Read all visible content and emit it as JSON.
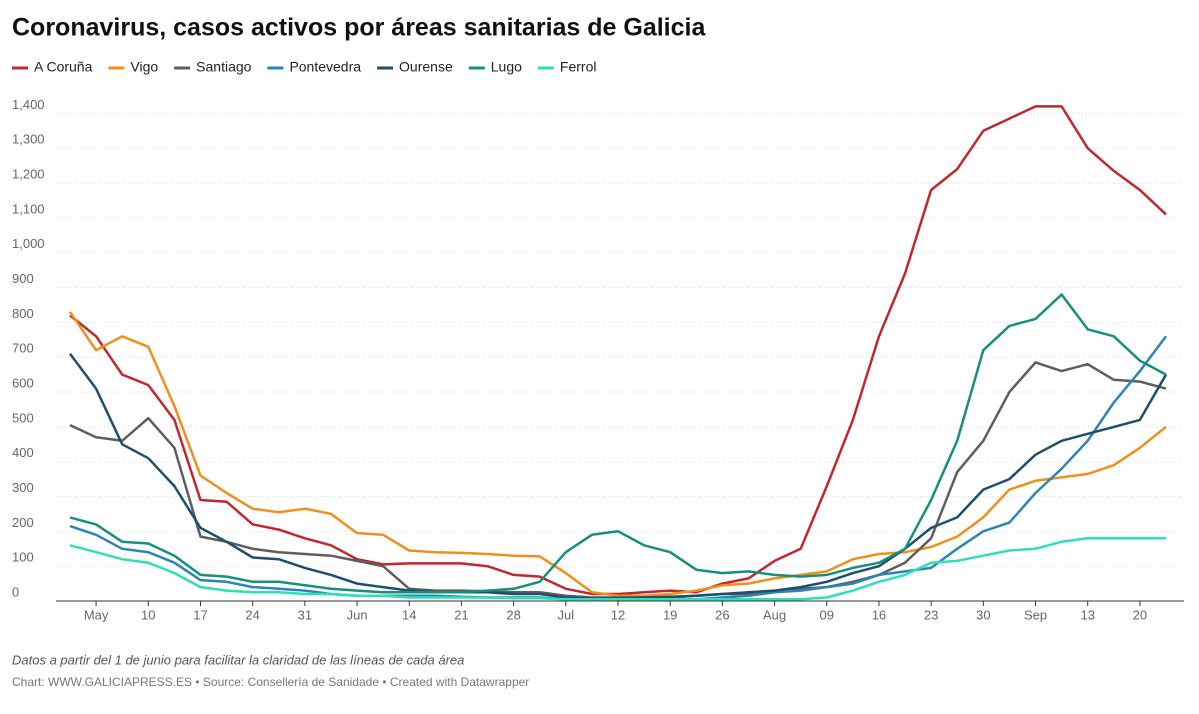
{
  "chart_data": {
    "type": "line",
    "title": "Coronavirus, casos activos por áreas sanitarias de Galicia",
    "note": "Datos a partir del 1 de junio para facilitar la claridad de las líneas de cada área",
    "source": "Chart: WWW.GALICIAPRESS.ES • Source: Consellería de Sanidade • Created with Datawrapper",
    "categories": [
      null,
      "May",
      null,
      "10",
      null,
      "17",
      null,
      "24",
      null,
      "31",
      null,
      "Jun",
      null,
      "14",
      null,
      "21",
      null,
      "28",
      null,
      "Jul",
      null,
      "12",
      null,
      "19",
      null,
      "26",
      null,
      "Aug",
      null,
      "09",
      null,
      "16",
      null,
      "23",
      null,
      "30",
      null,
      "Sep",
      null,
      "13",
      null,
      "20",
      null
    ],
    "ylim": [
      0,
      1450
    ],
    "yticks": [
      0,
      100,
      200,
      300,
      400,
      500,
      600,
      700,
      800,
      900,
      {
        "value": 1000,
        "label": "1,000"
      },
      {
        "value": 1100,
        "label": "1,100"
      },
      {
        "value": 1200,
        "label": "1,200"
      },
      {
        "value": 1300,
        "label": "1,300"
      },
      {
        "value": 1400,
        "label": "1,400"
      }
    ],
    "grid": true,
    "series": [
      {
        "name": "A Coruña",
        "color": "#c1272d",
        "values": [
          820,
          760,
          650,
          620,
          520,
          290,
          285,
          220,
          205,
          180,
          160,
          120,
          105,
          108,
          108,
          108,
          100,
          75,
          70,
          35,
          20,
          20,
          25,
          30,
          25,
          50,
          65,
          115,
          150,
          330,
          520,
          760,
          940,
          1180,
          1240,
          1350,
          1385,
          1420,
          1420,
          1300,
          1235,
          1180,
          1110
        ]
      },
      {
        "name": "Vigo",
        "color": "#f0901b",
        "values": [
          830,
          720,
          760,
          730,
          560,
          360,
          310,
          265,
          255,
          265,
          250,
          195,
          190,
          145,
          140,
          138,
          135,
          130,
          128,
          80,
          25,
          15,
          15,
          20,
          30,
          45,
          50,
          65,
          75,
          85,
          120,
          135,
          140,
          155,
          185,
          240,
          320,
          345,
          355,
          365,
          390,
          440,
          500
        ]
      },
      {
        "name": "Santiago",
        "color": "#5e5e5e",
        "values": [
          505,
          470,
          460,
          525,
          440,
          185,
          170,
          150,
          140,
          135,
          130,
          115,
          100,
          35,
          30,
          30,
          28,
          25,
          25,
          15,
          10,
          10,
          10,
          10,
          15,
          20,
          20,
          25,
          35,
          40,
          55,
          75,
          110,
          180,
          370,
          460,
          600,
          685,
          660,
          680,
          635,
          630,
          610
        ]
      },
      {
        "name": "Pontevedra",
        "color": "#2a86b8",
        "values": [
          215,
          190,
          150,
          140,
          110,
          60,
          55,
          40,
          35,
          30,
          20,
          15,
          15,
          15,
          15,
          12,
          10,
          10,
          10,
          5,
          5,
          5,
          5,
          5,
          5,
          10,
          15,
          25,
          30,
          40,
          50,
          75,
          85,
          95,
          150,
          200,
          225,
          310,
          380,
          460,
          570,
          660,
          760
        ]
      },
      {
        "name": "Ourense",
        "color": "#1f4e6e",
        "values": [
          710,
          610,
          450,
          410,
          330,
          210,
          170,
          125,
          120,
          95,
          75,
          50,
          40,
          30,
          25,
          25,
          25,
          20,
          20,
          10,
          8,
          8,
          10,
          12,
          15,
          20,
          25,
          30,
          40,
          55,
          80,
          100,
          150,
          210,
          240,
          320,
          350,
          420,
          460,
          480,
          500,
          520,
          650
        ]
      },
      {
        "name": "Lugo",
        "color": "#15907c",
        "values": [
          240,
          220,
          170,
          165,
          130,
          75,
          70,
          55,
          55,
          45,
          35,
          30,
          25,
          25,
          25,
          25,
          30,
          35,
          55,
          140,
          190,
          200,
          160,
          140,
          90,
          80,
          85,
          75,
          70,
          75,
          95,
          110,
          150,
          290,
          460,
          720,
          790,
          810,
          880,
          780,
          760,
          690,
          650
        ]
      },
      {
        "name": "Ferrol",
        "color": "#2de0b5",
        "values": [
          160,
          140,
          120,
          110,
          80,
          40,
          30,
          25,
          25,
          20,
          20,
          15,
          15,
          10,
          10,
          10,
          10,
          8,
          8,
          5,
          5,
          5,
          5,
          5,
          5,
          5,
          5,
          5,
          5,
          10,
          30,
          55,
          75,
          110,
          115,
          130,
          145,
          150,
          170,
          180,
          180,
          180,
          180
        ]
      }
    ]
  }
}
